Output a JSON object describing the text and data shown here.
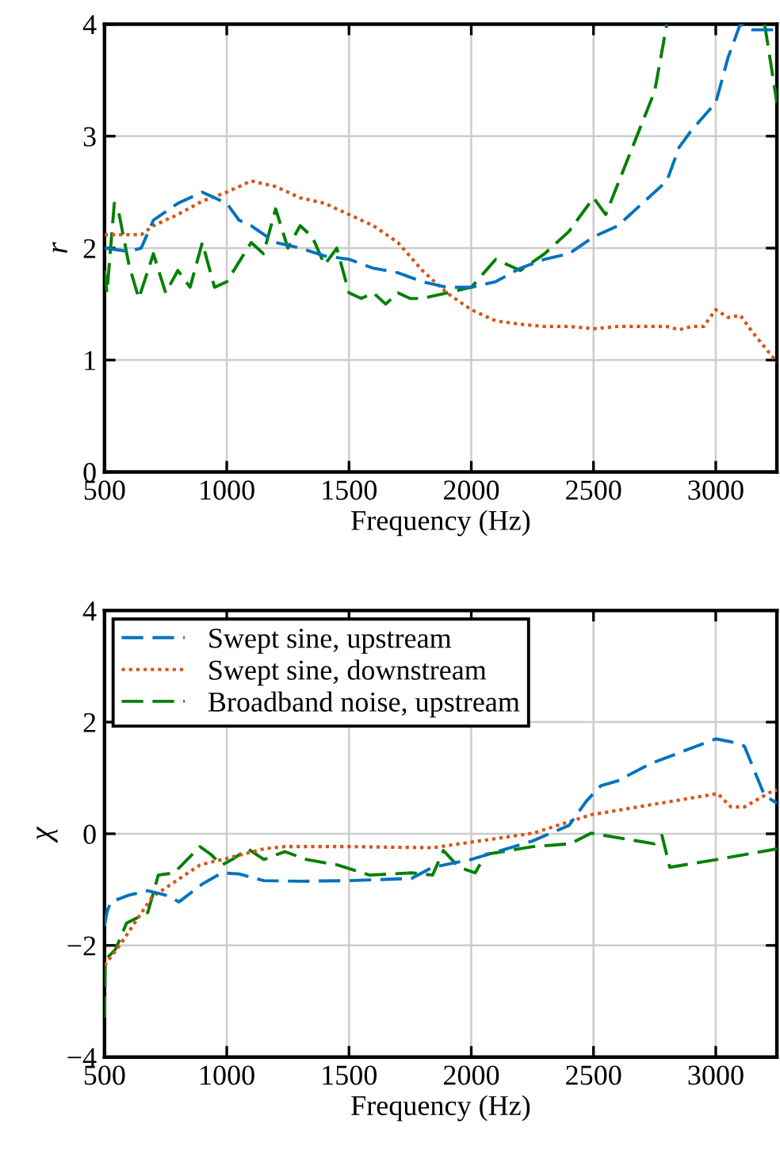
{
  "chart_data": [
    {
      "type": "line",
      "xlabel": "Frequency (Hz)",
      "ylabel": "r",
      "xlim": [
        500,
        3250
      ],
      "ylim": [
        0,
        4
      ],
      "xticks": [
        500,
        1000,
        1500,
        2000,
        2500,
        3000
      ],
      "yticks": [
        0,
        1,
        2,
        3,
        4
      ],
      "grid": true,
      "legend": false,
      "series": [
        {
          "color": "#0072bd",
          "line_style": "dashed",
          "x": [
            500,
            600,
            650,
            700,
            800,
            900,
            950,
            1000,
            1050,
            1100,
            1200,
            1300,
            1400,
            1500,
            1600,
            1700,
            1800,
            1900,
            2000,
            2100,
            2200,
            2300,
            2400,
            2500,
            2600,
            2700,
            2800,
            2850,
            2900,
            3000,
            3050,
            3100,
            3150,
            3250
          ],
          "values": [
            2.0,
            1.97,
            2.0,
            2.25,
            2.4,
            2.5,
            2.45,
            2.4,
            2.25,
            2.2,
            2.05,
            2.0,
            1.93,
            1.9,
            1.82,
            1.78,
            1.7,
            1.65,
            1.65,
            1.7,
            1.82,
            1.9,
            1.95,
            2.1,
            2.2,
            2.4,
            2.6,
            2.9,
            3.05,
            3.3,
            3.7,
            4.0,
            3.95,
            3.95
          ]
        },
        {
          "color": "#d95319",
          "line_style": "dotted",
          "x": [
            500,
            650,
            700,
            800,
            900,
            1000,
            1100,
            1200,
            1300,
            1400,
            1500,
            1600,
            1700,
            1800,
            1900,
            2000,
            2100,
            2200,
            2300,
            2400,
            2500,
            2600,
            2800,
            2850,
            2900,
            2950,
            3000,
            3050,
            3100,
            3150,
            3250
          ],
          "values": [
            2.12,
            2.12,
            2.2,
            2.3,
            2.42,
            2.5,
            2.6,
            2.55,
            2.45,
            2.4,
            2.3,
            2.2,
            2.05,
            1.8,
            1.6,
            1.45,
            1.35,
            1.32,
            1.3,
            1.3,
            1.28,
            1.3,
            1.3,
            1.27,
            1.3,
            1.3,
            1.45,
            1.38,
            1.4,
            1.25,
            0.98
          ]
        },
        {
          "color": "#008000",
          "line_style": "dashed",
          "x": [
            500,
            510,
            540,
            560,
            600,
            640,
            700,
            750,
            800,
            850,
            900,
            950,
            1000,
            1100,
            1150,
            1200,
            1250,
            1300,
            1350,
            1400,
            1450,
            1500,
            1550,
            1600,
            1650,
            1700,
            1750,
            1800,
            1900,
            2000,
            2100,
            2150,
            2200,
            2300,
            2400,
            2500,
            2550,
            2650,
            2750,
            2800,
            2850,
            3200,
            3250
          ],
          "values": [
            1.8,
            1.6,
            2.4,
            2.3,
            1.85,
            1.55,
            1.95,
            1.6,
            1.8,
            1.65,
            2.05,
            1.65,
            1.7,
            2.05,
            1.95,
            2.35,
            2.0,
            2.2,
            2.1,
            1.85,
            2.0,
            1.6,
            1.55,
            1.6,
            1.5,
            1.6,
            1.55,
            1.55,
            1.6,
            1.65,
            1.9,
            1.85,
            1.8,
            1.95,
            2.15,
            2.45,
            2.3,
            2.85,
            3.4,
            4.0,
            null,
            4.0,
            3.3
          ]
        }
      ]
    },
    {
      "type": "line",
      "xlabel": "Frequency (Hz)",
      "ylabel": "χ",
      "xlim": [
        500,
        3250
      ],
      "ylim": [
        -4,
        4
      ],
      "xticks": [
        500,
        1000,
        1500,
        2000,
        2500,
        3000
      ],
      "yticks": [
        {
          "value": -4,
          "label": "−4"
        },
        {
          "value": -2,
          "label": "−2"
        },
        0,
        2,
        4
      ],
      "grid": true,
      "legend": "top left",
      "series": [
        {
          "name": "Swept sine, upstream",
          "color": "#0072bd",
          "line_style": "dashed",
          "x": [
            500,
            510,
            526,
            600,
            677,
            750,
            805,
            900,
            980,
            1050,
            1152,
            1300,
            1497,
            1756,
            1842,
            2000,
            2250,
            2400,
            2470,
            2530,
            2600,
            2730,
            2850,
            3000,
            3060,
            3117,
            3200,
            3250
          ],
          "values": [
            -1.65,
            -1.4,
            -1.22,
            -1.1,
            -1.02,
            -1.1,
            -1.22,
            -0.9,
            -0.7,
            -0.72,
            -0.84,
            -0.85,
            -0.84,
            -0.8,
            -0.6,
            -0.46,
            -0.13,
            0.15,
            0.58,
            0.86,
            0.95,
            1.25,
            1.45,
            1.7,
            1.65,
            1.57,
            0.68,
            0.55
          ]
        },
        {
          "name": "Swept sine, downstream",
          "color": "#d95319",
          "line_style": "dotted",
          "x": [
            500,
            565,
            695,
            760,
            890,
            1064,
            1152,
            1238,
            1497,
            1842,
            2253,
            2490,
            3008,
            3062,
            3117,
            3233,
            3250
          ],
          "values": [
            -2.36,
            -1.98,
            -1.13,
            -0.94,
            -0.56,
            -0.37,
            -0.27,
            -0.23,
            -0.23,
            -0.25,
            0.01,
            0.34,
            0.72,
            0.48,
            0.48,
            0.77,
            0.78
          ]
        },
        {
          "name": "Broadband noise, upstream",
          "color": "#008000",
          "line_style": "dashed",
          "x": [
            500,
            503,
            545,
            590,
            677,
            720,
            785,
            890,
            935,
            980,
            1022,
            1087,
            1152,
            1238,
            1325,
            1454,
            1584,
            1756,
            1842,
            1886,
            1950,
            2016,
            2059,
            2253,
            2404,
            2490,
            2749,
            2780,
            2812,
            3007,
            3250
          ],
          "values": [
            -3.3,
            -2.26,
            -2.07,
            -1.6,
            -1.41,
            -0.74,
            -0.7,
            -0.23,
            -0.37,
            -0.56,
            -0.46,
            -0.27,
            -0.46,
            -0.32,
            -0.46,
            -0.56,
            -0.74,
            -0.7,
            -0.74,
            -0.3,
            -0.6,
            -0.7,
            -0.37,
            -0.23,
            -0.18,
            0.01,
            -0.18,
            -0.03,
            -0.6,
            -0.46,
            -0.27
          ]
        }
      ]
    }
  ]
}
